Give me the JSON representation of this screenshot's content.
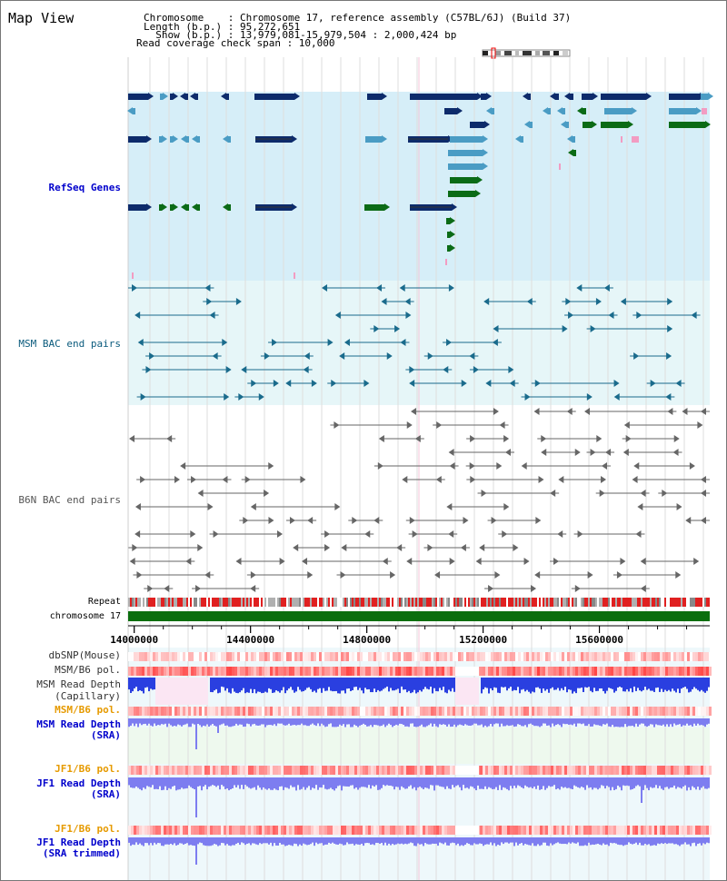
{
  "title": "Map View",
  "header": {
    "chromosome_line": "Chromosome    : Chromosome 17, reference assembly (C57BL/6J) (Build 37)",
    "length_line": "Length (b.p.) : 95,272,651",
    "show_line": "  Show (b.p.) : 13,979,081-15,979,504 : 2,000,424 bp",
    "coverage_line": "Read coverage check span : 10,000"
  },
  "tracks": {
    "refseq": "RefSeq Genes",
    "msm_bac": "MSM BAC end pairs",
    "b6n_bac": "B6N BAC end pairs",
    "repeat": "Repeat",
    "chromosome": "chromosome 17",
    "dbsnp": "dbSNP(Mouse)",
    "msm_pol1": "MSM/B6 pol.",
    "msm_depth_cap_1": "MSM Read Depth",
    "msm_depth_cap_2": "(Capillary)",
    "msm_pol2": "MSM/B6 pol.",
    "msm_depth_sra_1": "MSM Read Depth",
    "msm_depth_sra_2": "(SRA)",
    "jf1_pol1": "JF1/B6 pol.",
    "jf1_depth_1": "JF1 Read Depth",
    "jf1_depth_2": "(SRA)",
    "jf1_pol2": "JF1/B6 pol.",
    "jf1_trim_1": "JF1 Read Depth",
    "jf1_trim_2": "(SRA trimmed)"
  },
  "axis": {
    "ticks": [
      {
        "value": 14000000,
        "label": "14000000"
      },
      {
        "value": 14400000,
        "label": "14400000"
      },
      {
        "value": 14800000,
        "label": "14800000"
      },
      {
        "value": 15200000,
        "label": "15200000"
      },
      {
        "value": 15600000,
        "label": "15600000"
      }
    ],
    "range": [
      13979081,
      15979504
    ]
  },
  "colors": {
    "refseq_bg": "#d6eef8",
    "msm_bg": "#e6f6f8",
    "gene_navy": "#0d2b6b",
    "gene_blue": "#4a9cc4",
    "gene_green": "#0b6b16",
    "gene_pink": "#f29cc2",
    "msm_line": "#1a6b8c",
    "b6n_line": "#666666",
    "chrom_green": "#0b6e0e",
    "depth_blue": "#2a3fe0",
    "depth_light": "#7d7df0",
    "label_blue": "#0000cc",
    "label_orange": "#e69a00",
    "label_teal": "#0b5b7d"
  }
}
